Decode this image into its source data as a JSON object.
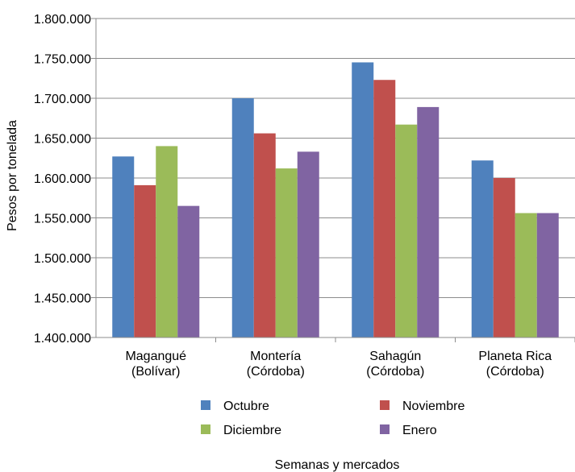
{
  "chart_data": {
    "type": "bar",
    "title": "",
    "xlabel": "Semanas y mercados",
    "ylabel": "Pesos por tonelada",
    "ylim": [
      1400000,
      1800000
    ],
    "yticks": [
      1400000,
      1450000,
      1500000,
      1550000,
      1600000,
      1650000,
      1700000,
      1750000,
      1800000
    ],
    "ytick_labels": [
      "1.400.000",
      "1.450.000",
      "1.500.000",
      "1.550.000",
      "1.600.000",
      "1.650.000",
      "1.700.000",
      "1.750.000",
      "1.800.000"
    ],
    "categories": [
      [
        "Magangué",
        "(Bolívar)"
      ],
      [
        "Montería",
        "(Córdoba)"
      ],
      [
        "Sahagún",
        "(Córdoba)"
      ],
      [
        "Planeta Rica",
        "(Córdoba)"
      ]
    ],
    "series": [
      {
        "name": "Octubre",
        "color": "#4f81bd",
        "values": [
          1627000,
          1700000,
          1745000,
          1622000
        ]
      },
      {
        "name": "Noviembre",
        "color": "#c0504d",
        "values": [
          1591000,
          1656000,
          1723000,
          1600000
        ]
      },
      {
        "name": "Diciembre",
        "color": "#9bbb59",
        "values": [
          1640000,
          1612000,
          1667000,
          1556000
        ]
      },
      {
        "name": "Enero",
        "color": "#8064a2",
        "values": [
          1565000,
          1633000,
          1689000,
          1556000
        ]
      }
    ],
    "grid": true,
    "legend_position": "bottom"
  }
}
